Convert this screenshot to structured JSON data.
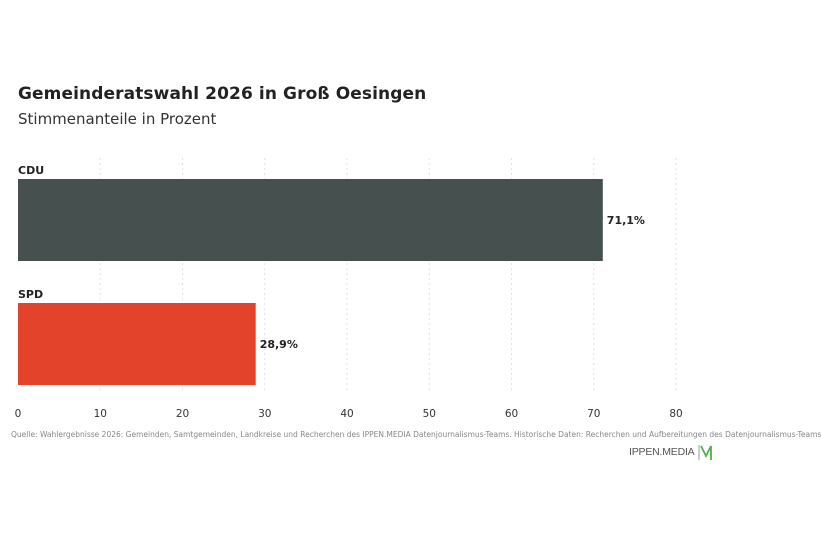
{
  "title": "Gemeinderatswahl 2026 in Groß Oesingen",
  "subtitle": "Stimmenanteile in Prozent",
  "source": "Quelle: Wahlergebnisse 2026: Gemeinden, Samtgemeinden, Landkreise und Recherchen des IPPEN.MEDIA Datenjournalismus-Teams. Historische Daten: Recherchen und Aufbereitungen des Datenjournalismus-Teams",
  "logo_text": "IPPEN.MEDIA",
  "chart_data": {
    "type": "bar",
    "orientation": "horizontal",
    "categories": [
      "CDU",
      "SPD"
    ],
    "values": [
      71.1,
      28.9
    ],
    "value_labels": [
      "71,1%",
      "28,9%"
    ],
    "colors": [
      "#46504f",
      "#e3432b"
    ],
    "xlim": [
      0,
      80
    ],
    "x_ticks": [
      0,
      10,
      20,
      30,
      40,
      50,
      60,
      70,
      80
    ],
    "grid": true,
    "title": "Gemeinderatswahl 2026 in Groß Oesingen",
    "subtitle": "Stimmenanteile in Prozent"
  }
}
